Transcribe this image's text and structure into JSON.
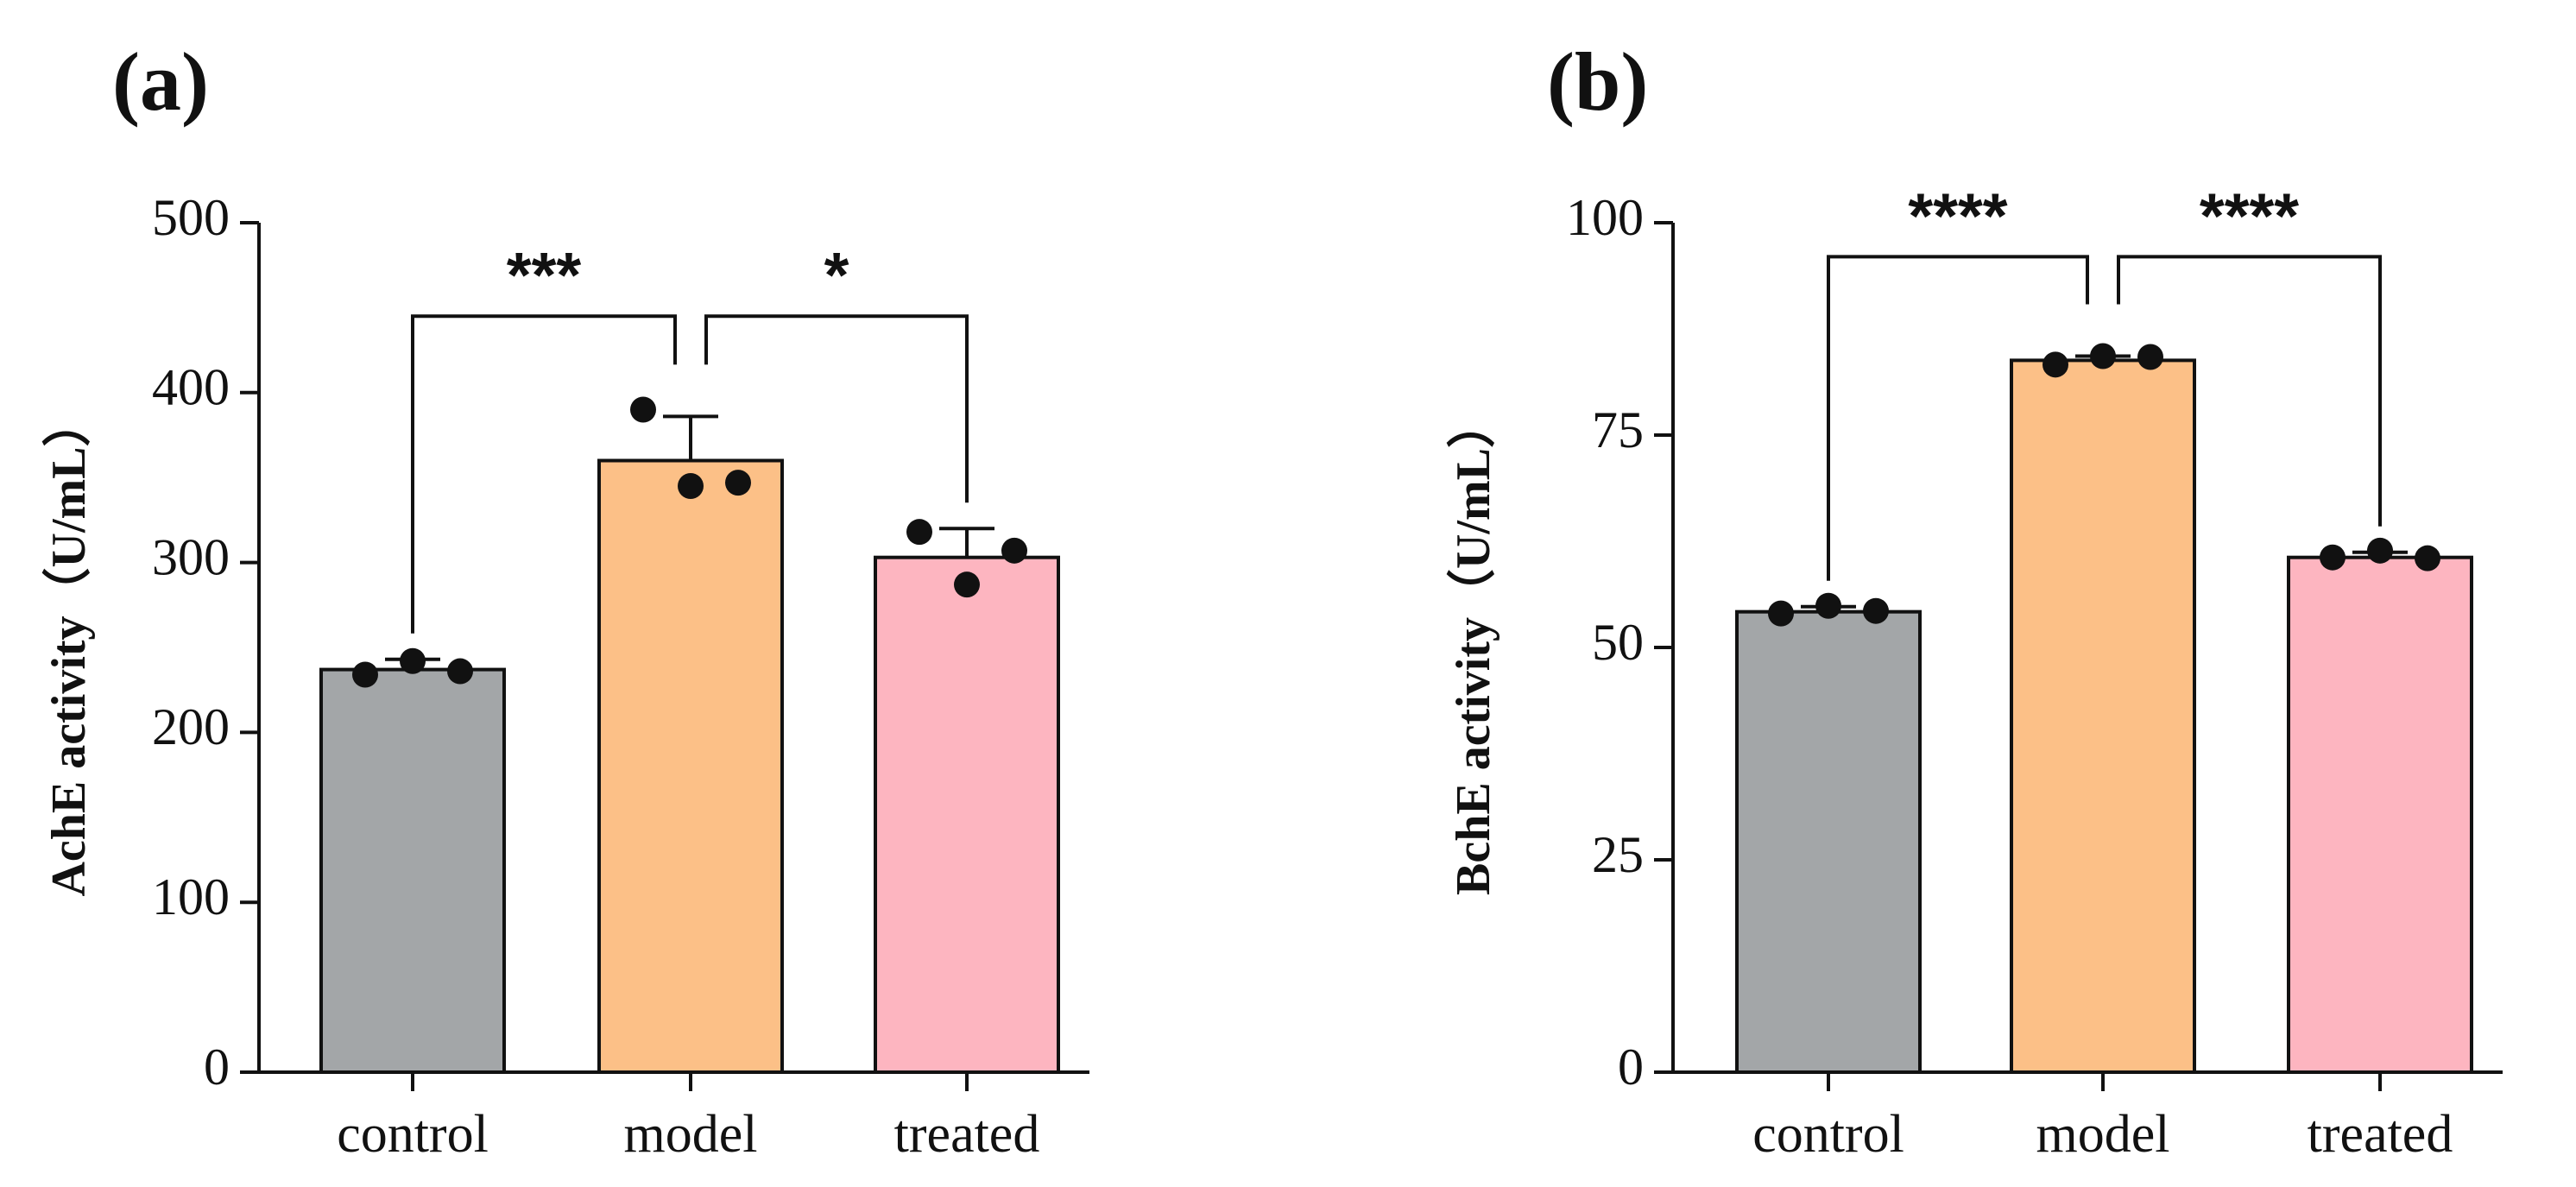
{
  "chart_data": [
    {
      "type": "bar",
      "panel_label": "(a)",
      "title": "",
      "xlabel": "",
      "ylabel": "AchE activity（U/mL）",
      "ylim": [
        0,
        500
      ],
      "yticks": [
        0,
        100,
        200,
        300,
        400,
        500
      ],
      "categories": [
        "control",
        "model",
        "treated"
      ],
      "values": [
        237,
        360,
        303
      ],
      "error_upper": [
        243,
        386,
        320
      ],
      "points": [
        [
          234,
          242,
          236
        ],
        [
          390,
          345,
          347
        ],
        [
          318,
          287,
          307
        ]
      ],
      "colors": [
        "#a3a6a8",
        "#fcc087",
        "#fdb5c0"
      ],
      "significance": [
        {
          "from": 0,
          "to": 1,
          "label": "***",
          "bracket_y": 445
        },
        {
          "from": 1,
          "to": 2,
          "label": "*",
          "bracket_y": 445
        }
      ]
    },
    {
      "type": "bar",
      "panel_label": "(b)",
      "title": "",
      "xlabel": "",
      "ylabel": "BchE activity（U/mL）",
      "ylim": [
        0,
        100
      ],
      "yticks": [
        0,
        25,
        50,
        75,
        100
      ],
      "categories": [
        "control",
        "model",
        "treated"
      ],
      "values": [
        54.2,
        83.8,
        60.6
      ],
      "error_upper": [
        54.8,
        84.3,
        61.2
      ],
      "points": [
        [
          54.0,
          54.9,
          54.3
        ],
        [
          83.3,
          84.3,
          84.2
        ],
        [
          60.6,
          61.4,
          60.5
        ]
      ],
      "colors": [
        "#a3a6a8",
        "#fcc087",
        "#fdb5c0"
      ],
      "significance": [
        {
          "from": 0,
          "to": 1,
          "label": "****",
          "bracket_y": 96
        },
        {
          "from": 1,
          "to": 2,
          "label": "****",
          "bracket_y": 96
        }
      ]
    }
  ]
}
